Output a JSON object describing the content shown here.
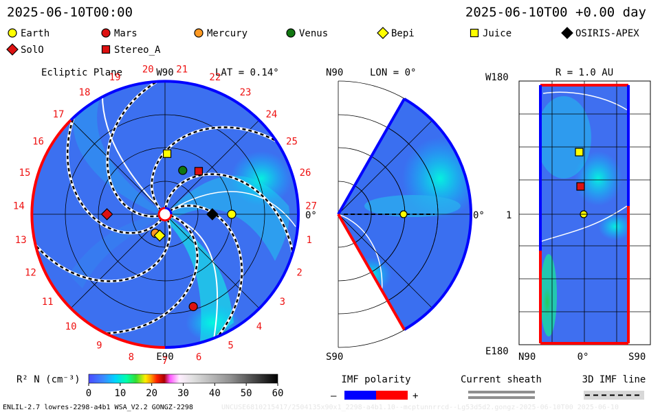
{
  "header": {
    "left_timestamp": "2025-06-10T00:00",
    "right_timestamp": "2025-06-10T00 +0.00 day"
  },
  "legend": [
    {
      "name": "Earth",
      "shape": "circle",
      "color": "#ffff00"
    },
    {
      "name": "Mars",
      "shape": "circle",
      "color": "#dd1111"
    },
    {
      "name": "Mercury",
      "shape": "circle",
      "color": "#ff9922"
    },
    {
      "name": "Venus",
      "shape": "circle",
      "color": "#117711"
    },
    {
      "name": "Bepi",
      "shape": "diamond",
      "color": "#ffff00"
    },
    {
      "name": "Juice",
      "shape": "square",
      "color": "#ffff00"
    },
    {
      "name": "OSIRIS-APEX",
      "shape": "diamond",
      "color": "#000000"
    },
    {
      "name": "SolO",
      "shape": "diamond",
      "color": "#dd1111"
    },
    {
      "name": "Stereo_A",
      "shape": "square",
      "color": "#dd1111"
    }
  ],
  "ecliptic": {
    "title": "Ecliptic Plane",
    "lat_label": "LAT = 0.14°",
    "top_label": "W90",
    "bottom_label": "E90",
    "right_label": "0°",
    "carrington_ticks": [
      "1",
      "2",
      "3",
      "4",
      "5",
      "6",
      "7",
      "8",
      "9",
      "10",
      "11",
      "12",
      "13",
      "14",
      "15",
      "16",
      "17",
      "18",
      "19",
      "20",
      "21",
      "22",
      "23",
      "24",
      "25",
      "26",
      "27"
    ]
  },
  "meridional": {
    "top_label": "N90",
    "bottom_label": "S90",
    "lon_label": "LON = 0°",
    "right_label": "0°"
  },
  "earth_view": {
    "top_left_label": "W180",
    "title": "R = 1.0 AU",
    "mid_label": "1",
    "bottom_left_label": "E180",
    "x_labels": [
      "N90",
      "0°",
      "S90"
    ]
  },
  "colorbar": {
    "label": "R² N (cm⁻³)",
    "ticks": [
      "0",
      "10",
      "20",
      "30",
      "40",
      "50",
      "60"
    ]
  },
  "imf": {
    "title": "IMF polarity",
    "minus": "–",
    "plus": "+",
    "negative_color": "#0000ff",
    "positive_color": "#ff0000"
  },
  "current_sheath": {
    "title": "Current sheath"
  },
  "imf_line": {
    "title": "3D IMF line"
  },
  "footer": {
    "left": "ENLIL-2.7 lowres-2298-a4b1 WSA_V2.2 GONGZ-2298",
    "watermark": "UNCUSE6810215417/2504135x90x1_2298-a4b1.10--mcptunnrrcd--Lg53d5d2.gongz-2025-06-10T00 2025-06-10"
  },
  "chart_data": {
    "type": "heatmap",
    "quantity": "R² N (cm⁻³)",
    "range": [
      0,
      60
    ],
    "time": "2025-06-10T00",
    "objects_ecliptic": [
      {
        "name": "Earth",
        "r_au": 1.0,
        "lon_deg": 0
      },
      {
        "name": "Mars",
        "r_au": 1.45,
        "lon_deg": -73
      },
      {
        "name": "Mercury",
        "r_au": 0.32,
        "lon_deg": -117
      },
      {
        "name": "Venus",
        "r_au": 0.71,
        "lon_deg": 68
      },
      {
        "name": "Bepi",
        "r_au": 0.33,
        "lon_deg": -104
      },
      {
        "name": "Juice",
        "r_au": 0.91,
        "lon_deg": 88
      },
      {
        "name": "OSIRIS-APEX",
        "r_au": 0.71,
        "lon_deg": 0
      },
      {
        "name": "SolO",
        "r_au": 0.87,
        "lon_deg": 180
      },
      {
        "name": "Stereo_A",
        "r_au": 0.82,
        "lon_deg": 52
      }
    ],
    "earth_view_objects": [
      {
        "name": "Juice",
        "lat_deg": 5,
        "lon_deg": 90
      },
      {
        "name": "Stereo_A",
        "lat_deg": 2,
        "lon_deg": 40
      },
      {
        "name": "Earth",
        "lat_deg": 0,
        "lon_deg": 0
      }
    ]
  }
}
